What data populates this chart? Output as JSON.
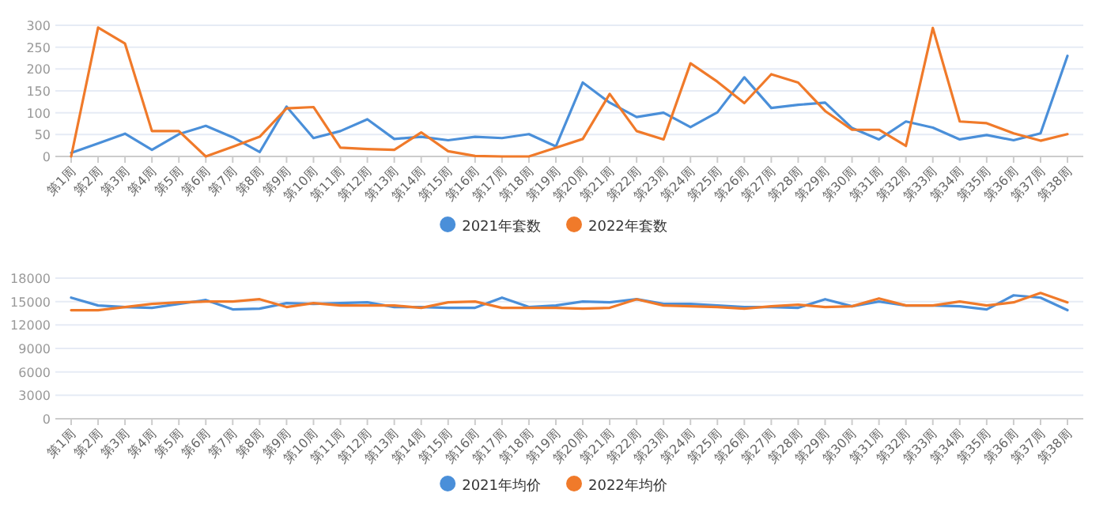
{
  "chart_data": [
    {
      "type": "line",
      "categories": [
        "第1周",
        "第2周",
        "第3周",
        "第4周",
        "第5周",
        "第6周",
        "第7周",
        "第8周",
        "第9周",
        "第10周",
        "第11周",
        "第12周",
        "第13周",
        "第14周",
        "第15周",
        "第16周",
        "第17周",
        "第18周",
        "第19周",
        "第20周",
        "第21周",
        "第22周",
        "第23周",
        "第24周",
        "第25周",
        "第26周",
        "第27周",
        "第28周",
        "第29周",
        "第30周",
        "第31周",
        "第32周",
        "第33周",
        "第34周",
        "第35周",
        "第36周",
        "第37周",
        "第38周"
      ],
      "series": [
        {
          "name": "2021年套数",
          "color": "#4a8fd9",
          "values": [
            8,
            30,
            52,
            15,
            51,
            70,
            44,
            10,
            114,
            42,
            58,
            85,
            40,
            45,
            37,
            45,
            42,
            51,
            23,
            169,
            123,
            90,
            100,
            67,
            101,
            181,
            111,
            118,
            123,
            65,
            39,
            80,
            66,
            39,
            49,
            37,
            53,
            230
          ]
        },
        {
          "name": "2022年套数",
          "color": "#f07a2a",
          "values": [
            0,
            295,
            258,
            58,
            58,
            0,
            22,
            45,
            110,
            113,
            20,
            17,
            15,
            55,
            12,
            1,
            0,
            0,
            20,
            40,
            143,
            58,
            39,
            213,
            171,
            122,
            188,
            169,
            104,
            61,
            61,
            24,
            294,
            80,
            76,
            53,
            36,
            51
          ]
        }
      ],
      "ylim": [
        0,
        300
      ],
      "yticks": [
        0,
        50,
        100,
        150,
        200,
        250,
        300
      ],
      "grid": "y",
      "legend": "bottom",
      "marker": "none",
      "line_style": "solid"
    },
    {
      "type": "line",
      "categories": [
        "第1周",
        "第2周",
        "第3周",
        "第4周",
        "第5周",
        "第6周",
        "第7周",
        "第8周",
        "第9周",
        "第10周",
        "第11周",
        "第12周",
        "第13周",
        "第14周",
        "第15周",
        "第16周",
        "第17周",
        "第18周",
        "第19周",
        "第20周",
        "第21周",
        "第22周",
        "第23周",
        "第24周",
        "第25周",
        "第26周",
        "第27周",
        "第28周",
        "第29周",
        "第30周",
        "第31周",
        "第32周",
        "第33周",
        "第34周",
        "第35周",
        "第36周",
        "第37周",
        "第38周"
      ],
      "series": [
        {
          "name": "2021年均价",
          "color": "#4a8fd9",
          "values": [
            15500,
            14500,
            14300,
            14200,
            14700,
            15200,
            14000,
            14100,
            14800,
            14700,
            14800,
            14900,
            14300,
            14300,
            14200,
            14200,
            15500,
            14300,
            14500,
            15000,
            14900,
            15300,
            14700,
            14700,
            14500,
            14300,
            14300,
            14200,
            15300,
            14400,
            15000,
            14500,
            14500,
            14400,
            14000,
            15800,
            15500,
            13900
          ]
        },
        {
          "name": "2022年均价",
          "color": "#f07a2a",
          "values": [
            13900,
            13900,
            14300,
            14700,
            14900,
            15000,
            15000,
            15300,
            14300,
            14800,
            14500,
            14500,
            14500,
            14200,
            14900,
            15000,
            14200,
            14200,
            14200,
            14100,
            14200,
            15300,
            14500,
            14400,
            14300,
            14100,
            14400,
            14600,
            14300,
            14400,
            15400,
            14500,
            14500,
            15000,
            14500,
            14900,
            16100,
            14900
          ]
        }
      ],
      "ylim": [
        0,
        18000
      ],
      "yticks": [
        0,
        3000,
        6000,
        9000,
        12000,
        15000,
        18000
      ],
      "grid": "y",
      "legend": "bottom",
      "marker": "none",
      "line_style": "solid"
    }
  ]
}
